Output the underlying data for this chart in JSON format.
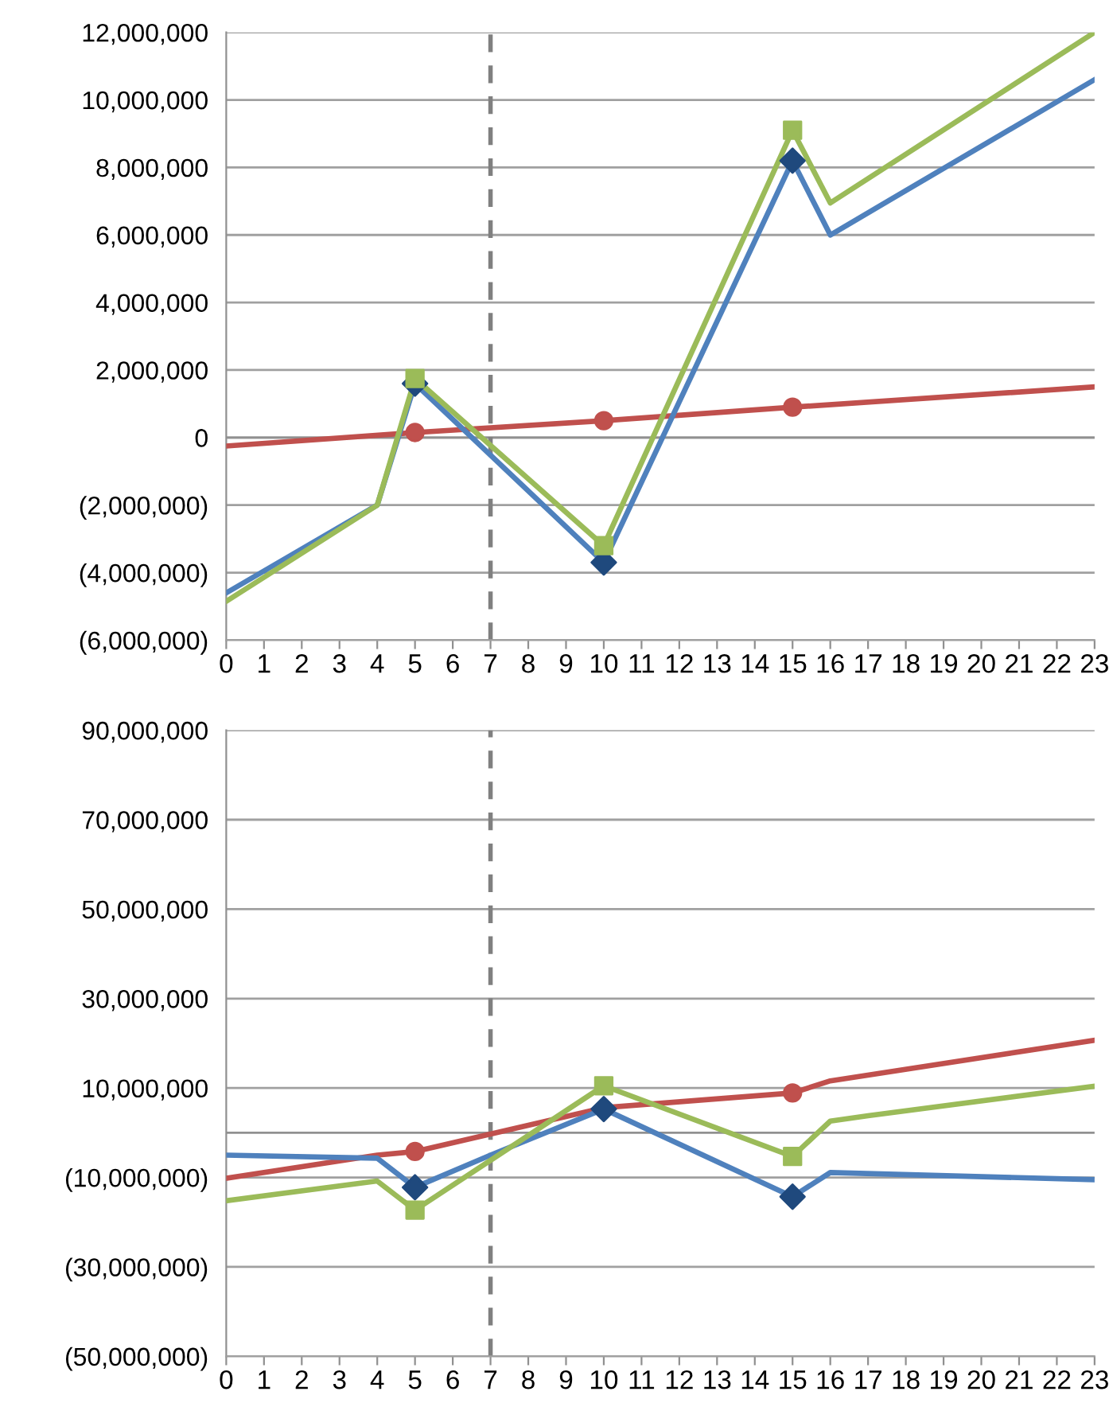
{
  "chart_data": [
    {
      "type": "line",
      "xlim": [
        0,
        23
      ],
      "xticks": [
        0,
        1,
        2,
        3,
        4,
        5,
        6,
        7,
        8,
        9,
        10,
        11,
        12,
        13,
        14,
        15,
        16,
        17,
        18,
        19,
        20,
        21,
        22,
        23
      ],
      "ylim": [
        -6000000,
        12000000
      ],
      "yticks": [
        {
          "value": -6000000,
          "label": "(6,000,000)"
        },
        {
          "value": -4000000,
          "label": "(4,000,000)"
        },
        {
          "value": -2000000,
          "label": "(2,000,000)"
        },
        0,
        {
          "value": 2000000,
          "label": "2,000,000"
        },
        {
          "value": 4000000,
          "label": "4,000,000"
        },
        {
          "value": 6000000,
          "label": "6,000,000"
        },
        {
          "value": 8000000,
          "label": "8,000,000"
        },
        {
          "value": 10000000,
          "label": "10,000,000"
        },
        {
          "value": 12000000,
          "label": "12,000,000"
        }
      ],
      "grid": "y",
      "legend": false,
      "ref_lines": [
        {
          "axis": "x",
          "value": 7,
          "color": "#808080",
          "line_style": "dashed"
        }
      ],
      "series": [
        {
          "type": "line",
          "color": "#c0504d",
          "x": [
            0,
            5,
            10,
            15,
            23
          ],
          "values": [
            -250000,
            150000,
            500000,
            900000,
            1500000
          ],
          "marker": "none"
        },
        {
          "type": "line",
          "color": "#4f81bd",
          "x": [
            0,
            4,
            5,
            10,
            15,
            16,
            23
          ],
          "values": [
            -4600000,
            -2000000,
            1600000,
            -3700000,
            8200000,
            6000000,
            10600000
          ],
          "marker": "none"
        },
        {
          "type": "line",
          "color": "#9bbb59",
          "x": [
            0,
            4,
            5,
            10,
            15,
            16,
            23
          ],
          "values": [
            -4850000,
            -2000000,
            1750000,
            -3200000,
            9100000,
            6950000,
            12000000
          ],
          "marker": "none"
        },
        {
          "type": "scatter",
          "color": "#c0504d",
          "x": [
            5,
            10,
            15
          ],
          "values": [
            150000,
            500000,
            900000
          ],
          "marker": "circle"
        },
        {
          "type": "scatter",
          "color": "#1f497d",
          "x": [
            5,
            10,
            15
          ],
          "values": [
            1600000,
            -3700000,
            8200000
          ],
          "marker": "diamond"
        },
        {
          "type": "scatter",
          "color": "#9bbb59",
          "x": [
            5,
            10,
            15
          ],
          "values": [
            1750000,
            -3200000,
            9100000
          ],
          "marker": "square"
        }
      ]
    },
    {
      "type": "line",
      "xlim": [
        0,
        23
      ],
      "xticks": [
        0,
        1,
        2,
        3,
        4,
        5,
        6,
        7,
        8,
        9,
        10,
        11,
        12,
        13,
        14,
        15,
        16,
        17,
        18,
        19,
        20,
        21,
        22,
        23
      ],
      "ylim": [
        -50000000,
        90000000
      ],
      "yticks": [
        {
          "value": -50000000,
          "label": "(50,000,000)"
        },
        {
          "value": -30000000,
          "label": "(30,000,000)"
        },
        {
          "value": -10000000,
          "label": "(10,000,000)"
        },
        {
          "value": 10000000,
          "label": "10,000,000"
        },
        {
          "value": 30000000,
          "label": "30,000,000"
        },
        {
          "value": 50000000,
          "label": "50,000,000"
        },
        {
          "value": 70000000,
          "label": "70,000,000"
        },
        {
          "value": 90000000,
          "label": "90,000,000"
        }
      ],
      "grid": "y",
      "legend": false,
      "ref_lines": [
        {
          "axis": "x",
          "value": 7,
          "color": "#808080",
          "line_style": "dashed"
        }
      ],
      "series": [
        {
          "type": "line",
          "color": "#c0504d",
          "x": [
            0,
            4,
            5,
            10,
            15,
            16,
            23
          ],
          "values": [
            -10200000,
            -5000000,
            -4200000,
            5600000,
            8900000,
            11600000,
            20700000
          ],
          "marker": "none"
        },
        {
          "type": "line",
          "color": "#4f81bd",
          "x": [
            0,
            4,
            5,
            7,
            10,
            15,
            16,
            23
          ],
          "values": [
            -5000000,
            -5700000,
            -12200000,
            -5000000,
            5300000,
            -14300000,
            -8900000,
            -10500000
          ],
          "marker": "none"
        },
        {
          "type": "line",
          "color": "#9bbb59",
          "x": [
            0,
            4,
            5,
            10,
            15,
            16,
            17,
            23
          ],
          "values": [
            -15200000,
            -10800000,
            -17300000,
            10500000,
            -5300000,
            2600000,
            3800000,
            10400000
          ],
          "marker": "none"
        },
        {
          "type": "scatter",
          "color": "#c0504d",
          "x": [
            5,
            15
          ],
          "values": [
            -4200000,
            8900000
          ],
          "marker": "circle"
        },
        {
          "type": "scatter",
          "color": "#1f497d",
          "x": [
            5,
            10,
            15
          ],
          "values": [
            -12200000,
            5300000,
            -14300000
          ],
          "marker": "diamond"
        },
        {
          "type": "scatter",
          "color": "#9bbb59",
          "x": [
            5,
            10,
            15
          ],
          "values": [
            -17300000,
            10500000,
            -5300000
          ],
          "marker": "square"
        }
      ]
    }
  ]
}
